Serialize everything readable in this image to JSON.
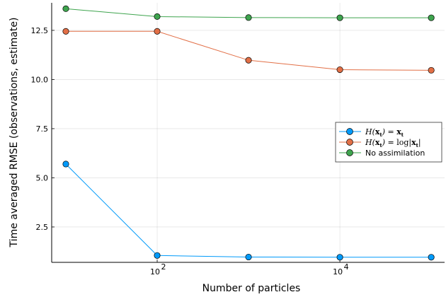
{
  "chart_data": {
    "type": "line",
    "title": "",
    "xlabel": "Number of particles",
    "ylabel": "Time averaged RMSE (observations, estimate)",
    "x_scale": "log10",
    "xlim": [
      7,
      140000
    ],
    "ylim": [
      0.7,
      13.9
    ],
    "x": [
      10,
      100,
      1000,
      10000,
      100000
    ],
    "x_ticks": [
      {
        "value": 100,
        "base": "10",
        "exp": "2"
      },
      {
        "value": 10000,
        "base": "10",
        "exp": "4"
      }
    ],
    "y_ticks": [
      {
        "value": 2.5,
        "label": "2.5"
      },
      {
        "value": 5.0,
        "label": "5.0"
      },
      {
        "value": 7.5,
        "label": "7.5"
      },
      {
        "value": 10.0,
        "label": "10.0"
      },
      {
        "value": 12.5,
        "label": "12.5"
      }
    ],
    "grid": true,
    "legend_position": "right",
    "series": [
      {
        "name": "H(x_t) = x_t",
        "values": [
          5.7,
          1.05,
          0.97,
          0.96,
          0.96
        ],
        "color": "#009AFA"
      },
      {
        "name": "H(x_t) = log|x_t|",
        "values": [
          12.45,
          12.45,
          10.98,
          10.5,
          10.47
        ],
        "color": "#E26F46"
      },
      {
        "name": "No assimilation",
        "values": [
          13.6,
          13.2,
          13.15,
          13.14,
          13.14
        ],
        "color": "#3EA44E"
      }
    ]
  }
}
